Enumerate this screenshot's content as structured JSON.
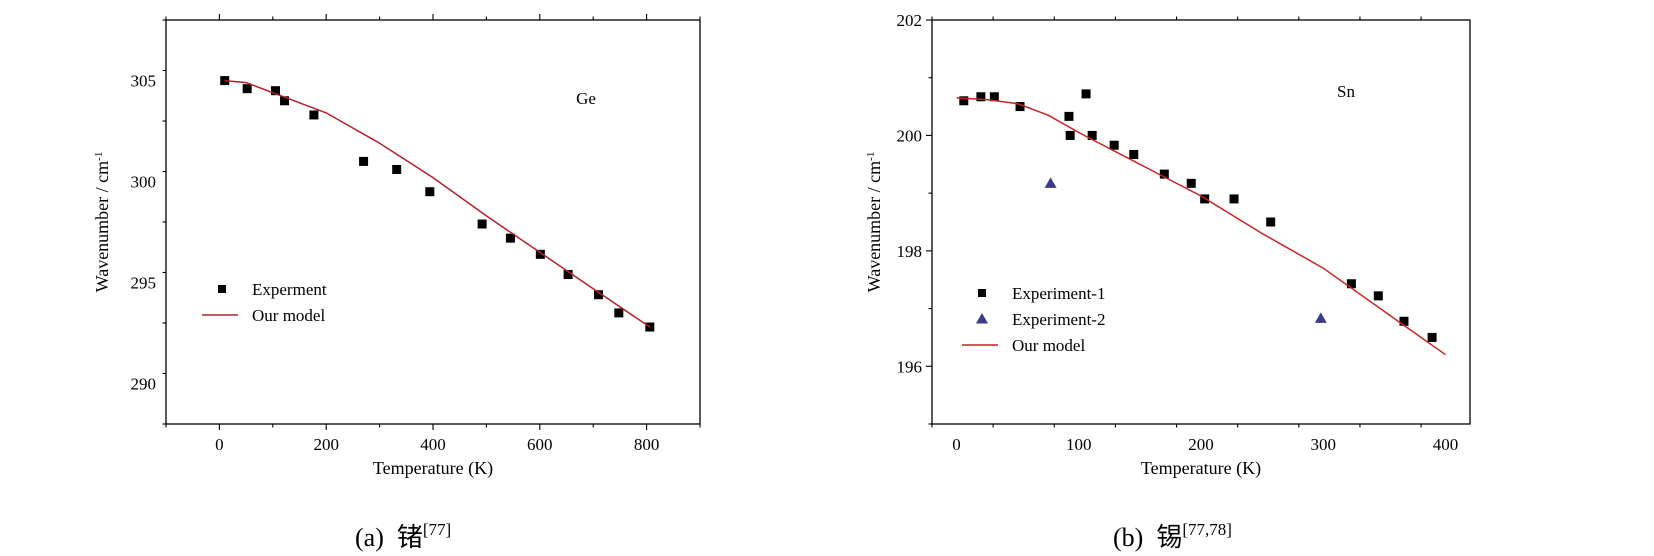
{
  "chart_data": [
    {
      "type": "scatter",
      "panel": "a",
      "annotation": "Ge",
      "xlabel": "Temperature (K)",
      "ylabel": "Wavenumber / cm",
      "ylabel_sup": "-1",
      "xlim": [
        -100,
        900
      ],
      "ylim": [
        288,
        308
      ],
      "xticks": [
        0,
        200,
        400,
        600,
        800
      ],
      "yticks": [
        290,
        295,
        300,
        305
      ],
      "grid": false,
      "legend_position": "bottom-left",
      "series": [
        {
          "name": "Experment",
          "kind": "scatter",
          "marker": "square",
          "color": "#000000",
          "x": [
            10,
            52,
            105,
            122,
            177,
            270,
            332,
            394,
            492,
            545,
            601,
            653,
            710,
            748,
            806
          ],
          "y": [
            305.0,
            304.6,
            304.5,
            304.0,
            303.3,
            301.0,
            300.6,
            299.5,
            297.9,
            297.2,
            296.4,
            295.4,
            294.4,
            293.5,
            292.8
          ]
        },
        {
          "name": "Our model",
          "kind": "line",
          "color": "#b3202a",
          "x": [
            10,
            50,
            100,
            150,
            200,
            300,
            400,
            500,
            600,
            700,
            806
          ],
          "y": [
            305.0,
            304.9,
            304.4,
            303.9,
            303.4,
            301.9,
            300.2,
            298.3,
            296.5,
            294.7,
            292.8
          ]
        }
      ],
      "caption": {
        "label": "(a)",
        "text": "锗",
        "ref": "[77]"
      }
    },
    {
      "type": "scatter",
      "panel": "b",
      "annotation": "Sn",
      "xlabel": "Temperature (K)",
      "ylabel": "Wavenumber / cm",
      "ylabel_sup": "-1",
      "xlim": [
        -20,
        420
      ],
      "ylim": [
        195,
        202
      ],
      "xticks": [
        0,
        100,
        200,
        300,
        400
      ],
      "yticks": [
        196,
        198,
        200,
        202
      ],
      "grid": false,
      "legend_position": "bottom-left",
      "series": [
        {
          "name": "Experiment-1",
          "kind": "scatter",
          "marker": "square",
          "color": "#000000",
          "x": [
            6,
            20,
            31,
            52,
            92,
            93,
            106,
            111,
            129,
            145,
            170,
            192,
            203,
            227,
            257,
            323,
            345,
            366,
            389
          ],
          "y": [
            200.6,
            200.67,
            200.67,
            200.5,
            200.33,
            200.0,
            200.72,
            200.0,
            199.83,
            199.67,
            199.33,
            199.17,
            198.9,
            198.9,
            198.5,
            197.43,
            197.22,
            196.78,
            196.5
          ],
          "label": "Experiment-1"
        },
        {
          "name": "Experiment-2",
          "kind": "scatter",
          "marker": "triangle",
          "color": "#3c3a8c",
          "x": [
            77,
            298
          ],
          "y": [
            199.17,
            196.83
          ]
        },
        {
          "name": "Our model",
          "kind": "line",
          "color": "#cc2222",
          "x": [
            0,
            25,
            50,
            75,
            100,
            150,
            200,
            250,
            300,
            350,
            400
          ],
          "y": [
            200.65,
            200.62,
            200.55,
            200.35,
            200.05,
            199.5,
            198.95,
            198.3,
            197.7,
            196.95,
            196.2
          ]
        }
      ],
      "caption": {
        "label": "(b)",
        "text": "锡",
        "ref": "[77,78]"
      }
    }
  ]
}
